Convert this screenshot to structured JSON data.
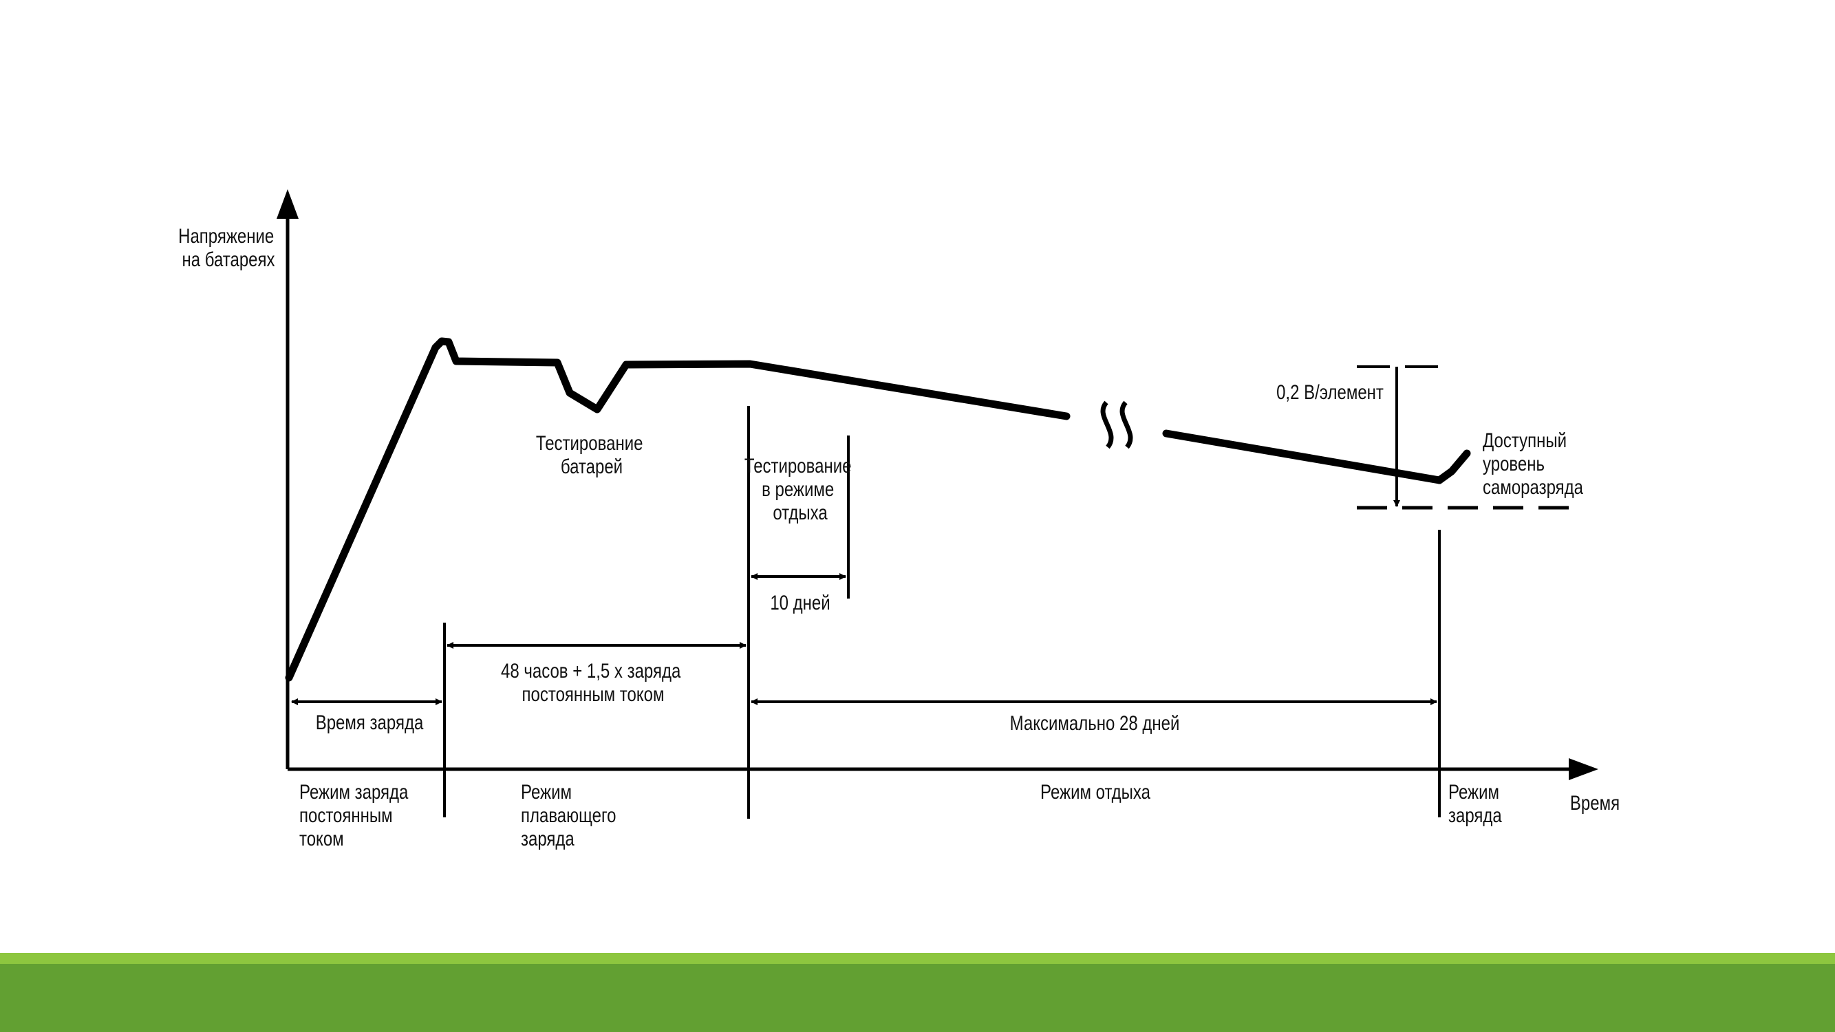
{
  "diagram": {
    "y_axis_label": [
      "Напряжение",
      "на батареях"
    ],
    "x_axis_label": "Время",
    "annotations": {
      "battery_test": [
        "Тестирование",
        "батарей"
      ],
      "rest_test": [
        "Тестирование",
        "в режиме",
        "отдыха"
      ],
      "ten_days": "10 дней",
      "voltage_drop": "0,2 В/элемент",
      "self_discharge": [
        "Доступный",
        "уровень",
        "саморазряда"
      ]
    },
    "spans": {
      "charge_time": "Время заряда",
      "float_time": [
        "48 часов + 1,5 х заряда",
        "постоянным током"
      ],
      "max_rest": "Максимально 28 дней"
    },
    "modes": {
      "constant_current": [
        "Режим заряда",
        "постоянным",
        "током"
      ],
      "float_charge": [
        "Режим",
        "плавающего",
        "заряда"
      ],
      "rest": "Режим отдыха",
      "recharge": [
        "Режим",
        "заряда"
      ]
    }
  },
  "colors": {
    "line": "#000000",
    "text": "#111111",
    "footer_light": "#8dc63f",
    "footer_dark": "#62a032",
    "background": "#ffffff"
  }
}
